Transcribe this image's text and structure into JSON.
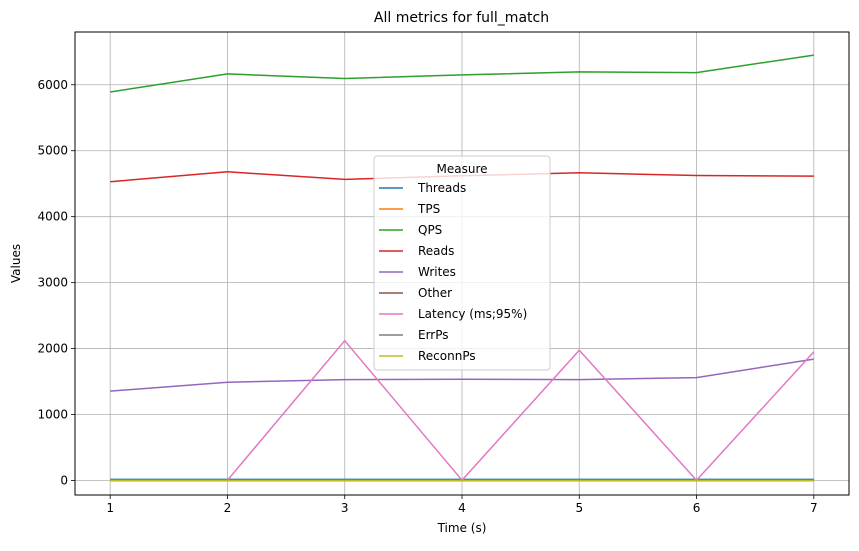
{
  "chart_data": {
    "type": "line",
    "title": "All metrics for full_match",
    "xlabel": "Time (s)",
    "ylabel": "Values",
    "xlim": [
      0.7,
      7.3
    ],
    "ylim": [
      -220,
      6800
    ],
    "xticks": [
      1,
      2,
      3,
      4,
      5,
      6,
      7
    ],
    "yticks": [
      0,
      1000,
      2000,
      3000,
      4000,
      5000,
      6000
    ],
    "grid": true,
    "legend": {
      "title": "Measure",
      "placement": "center"
    },
    "x": [
      1,
      2,
      3,
      4,
      5,
      6,
      7
    ],
    "series": [
      {
        "name": "Threads",
        "color": "#1f77b4",
        "values": [
          16,
          16,
          16,
          16,
          16,
          16,
          16
        ]
      },
      {
        "name": "TPS",
        "color": "#ff7f0e",
        "values": [
          5,
          5,
          5,
          5,
          5,
          5,
          5
        ]
      },
      {
        "name": "QPS",
        "color": "#2ca02c",
        "values": [
          5890,
          6165,
          6095,
          6150,
          6195,
          6185,
          6450
        ]
      },
      {
        "name": "Reads",
        "color": "#d62728",
        "values": [
          4530,
          4680,
          4565,
          4620,
          4665,
          4625,
          4615
        ]
      },
      {
        "name": "Writes",
        "color": "#9467bd",
        "values": [
          1355,
          1490,
          1530,
          1535,
          1530,
          1560,
          1840
        ]
      },
      {
        "name": "Other",
        "color": "#8c564b",
        "values": [
          0,
          0,
          0,
          0,
          0,
          0,
          0
        ]
      },
      {
        "name": "Latency (ms;95%)",
        "color": "#e377c2",
        "values": [
          5,
          5,
          2120,
          5,
          1975,
          5,
          1950
        ]
      },
      {
        "name": "ErrPs",
        "color": "#7f7f7f",
        "values": [
          0,
          0,
          0,
          0,
          0,
          0,
          0
        ]
      },
      {
        "name": "ReconnPs",
        "color": "#bcbd22",
        "values": [
          0,
          0,
          0,
          0,
          0,
          0,
          0
        ]
      }
    ]
  }
}
